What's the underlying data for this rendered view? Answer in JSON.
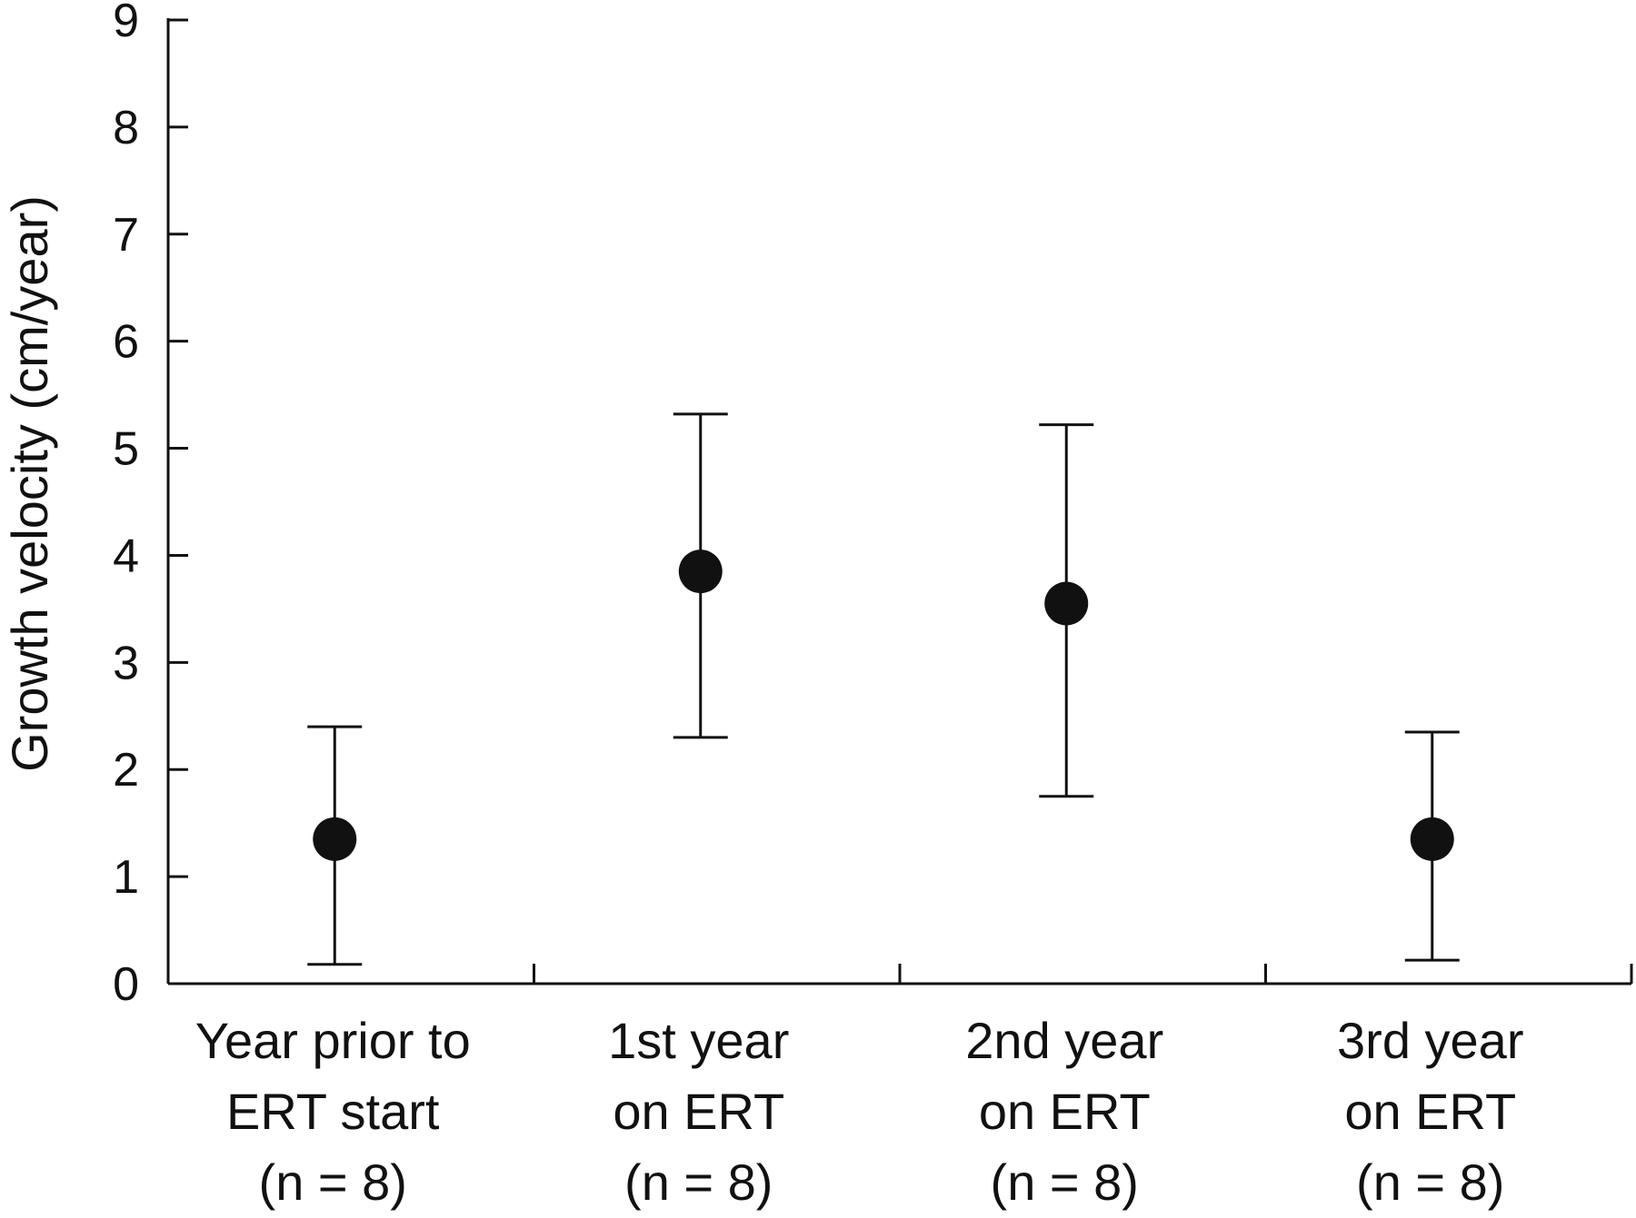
{
  "chart_data": {
    "type": "scatter",
    "title": "",
    "xlabel": "",
    "ylabel": "Growth velocity (cm/year)",
    "ylim": [
      0,
      9
    ],
    "yticks": [
      0,
      1,
      2,
      3,
      4,
      5,
      6,
      7,
      8,
      9
    ],
    "categories": [
      [
        "Year prior to",
        "ERT start",
        "(n = 8)"
      ],
      [
        "1st year",
        "on ERT",
        "(n = 8)"
      ],
      [
        "2nd year",
        "on ERT",
        "(n = 8)"
      ],
      [
        "3rd year",
        "on ERT",
        "(n = 8)"
      ]
    ],
    "series": [
      {
        "values": [
          1.35,
          3.85,
          3.55,
          1.35
        ],
        "error_low": [
          0.18,
          2.3,
          1.75,
          0.22
        ],
        "error_high": [
          2.4,
          5.32,
          5.22,
          2.35
        ]
      }
    ],
    "grid": false,
    "legend": "none",
    "colors": {
      "marks": "#111111",
      "background": "#ffffff"
    }
  }
}
